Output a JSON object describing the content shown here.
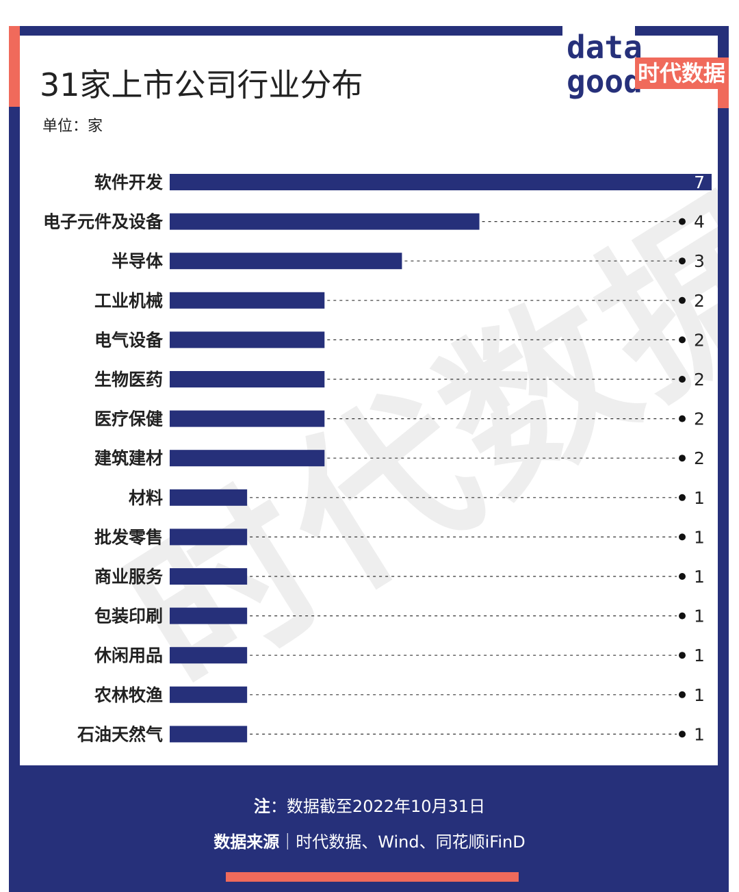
{
  "header": {
    "title": "31家上市公司行业分布",
    "unit": "单位：家"
  },
  "logo": {
    "word_top": "data",
    "word_bottom": "good",
    "cn": "时代数据"
  },
  "watermark": "时代数据",
  "footer": {
    "note_label": "注",
    "note_text": "：数据截至2022年10月31日",
    "source_label": "数据来源",
    "source_sep": "｜",
    "source_text": "时代数据、Wind、同花顺iFinD"
  },
  "colors": {
    "navy": "#26307a",
    "coral": "#f06a5b",
    "bar": "#26307a"
  },
  "chart_data": {
    "type": "bar",
    "orientation": "horizontal",
    "title": "31家上市公司行业分布",
    "unit": "单位：家",
    "categories": [
      "软件开发",
      "电子元件及设备",
      "半导体",
      "工业机械",
      "电气设备",
      "生物医药",
      "医疗保健",
      "建筑建材",
      "材料",
      "批发零售",
      "商业服务",
      "包装印刷",
      "休闲用品",
      "农林牧渔",
      "石油天然气"
    ],
    "values": [
      7,
      4,
      3,
      2,
      2,
      2,
      2,
      2,
      1,
      1,
      1,
      1,
      1,
      1,
      1
    ],
    "xlim": [
      0,
      7
    ],
    "grid": false,
    "legend": "none"
  }
}
